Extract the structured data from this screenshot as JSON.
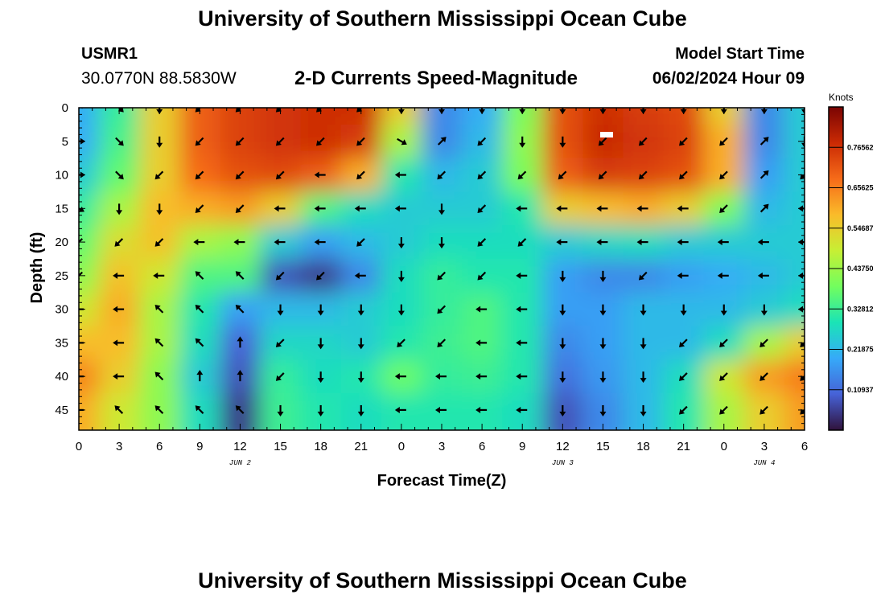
{
  "header": {
    "title": "University of Southern Mississippi Ocean Cube",
    "station_id": "USMR1",
    "station_coords": "30.0770N  88.5830W",
    "chart_title": "2-D Currents Speed-Magnitude",
    "model_label": "Model Start Time",
    "model_time": "06/02/2024 Hour 09"
  },
  "footer": {
    "title": "University of Southern Mississippi Ocean Cube"
  },
  "colorbar": {
    "units": "Knots",
    "tick_labels": [
      "0.10937",
      "0.21875",
      "0.32812",
      "0.43750",
      "0.54687",
      "0.65625",
      "0.76562"
    ],
    "range": [
      0,
      0.875
    ],
    "colors": [
      "#30123b",
      "#4662d7",
      "#36aaf9",
      "#1ae4b6",
      "#72fe5e",
      "#c7ef34",
      "#fabb2a",
      "#f66b19",
      "#ca2a04",
      "#7a0403"
    ]
  },
  "chart_data": {
    "type": "heatmap",
    "title": "2-D Currents Speed-Magnitude",
    "xlabel": "Forecast Time(Z)",
    "ylabel": "Depth (ft)",
    "units": "Knots",
    "xlim": [
      0,
      54
    ],
    "ylim": [
      48,
      0
    ],
    "x_tick_values": [
      0,
      3,
      6,
      9,
      12,
      15,
      18,
      21,
      24,
      27,
      30,
      33,
      36,
      39,
      42,
      45,
      48,
      51,
      54
    ],
    "x_tick_labels": [
      "0",
      "3",
      "6",
      "9",
      "12",
      "15",
      "18",
      "21",
      "0",
      "3",
      "6",
      "9",
      "12",
      "15",
      "18",
      "21",
      "0",
      "3",
      "6"
    ],
    "y_tick_values": [
      0,
      5,
      10,
      15,
      20,
      25,
      30,
      35,
      40,
      45
    ],
    "y_tick_labels": [
      "0",
      "5",
      "10",
      "15",
      "20",
      "25",
      "30",
      "35",
      "40",
      "45"
    ],
    "date_labels": [
      {
        "hour": 12,
        "label": "JUN 2"
      },
      {
        "hour": 36,
        "label": "JUN 3"
      },
      {
        "hour": 51,
        "label": "JUN 4"
      }
    ],
    "vector_hours": [
      0,
      3,
      6,
      9,
      12,
      15,
      18,
      21,
      24,
      27,
      30,
      33,
      36,
      39,
      42,
      45,
      48,
      51,
      54
    ],
    "vector_depths": [
      0,
      5,
      10,
      15,
      20,
      25,
      30,
      35,
      40,
      45
    ],
    "speed": [
      [
        0.2,
        0.32,
        0.55,
        0.7,
        0.74,
        0.76,
        0.77,
        0.77,
        0.55,
        0.15,
        0.2,
        0.4,
        0.72,
        0.77,
        0.75,
        0.73,
        0.55,
        0.15,
        0.25
      ],
      [
        0.2,
        0.34,
        0.55,
        0.7,
        0.74,
        0.76,
        0.77,
        0.75,
        0.45,
        0.15,
        0.22,
        0.42,
        0.72,
        0.78,
        0.76,
        0.74,
        0.6,
        0.15,
        0.25
      ],
      [
        0.25,
        0.37,
        0.55,
        0.68,
        0.72,
        0.73,
        0.7,
        0.6,
        0.3,
        0.22,
        0.25,
        0.4,
        0.7,
        0.75,
        0.74,
        0.72,
        0.6,
        0.18,
        0.25
      ],
      [
        0.32,
        0.45,
        0.58,
        0.6,
        0.62,
        0.55,
        0.35,
        0.28,
        0.25,
        0.25,
        0.25,
        0.3,
        0.55,
        0.58,
        0.6,
        0.55,
        0.4,
        0.22,
        0.25
      ],
      [
        0.37,
        0.52,
        0.57,
        0.45,
        0.42,
        0.25,
        0.18,
        0.22,
        0.25,
        0.28,
        0.28,
        0.28,
        0.25,
        0.27,
        0.28,
        0.25,
        0.25,
        0.25,
        0.25
      ],
      [
        0.42,
        0.57,
        0.5,
        0.35,
        0.35,
        0.08,
        0.05,
        0.15,
        0.28,
        0.32,
        0.3,
        0.3,
        0.18,
        0.15,
        0.15,
        0.18,
        0.2,
        0.22,
        0.25
      ],
      [
        0.5,
        0.6,
        0.45,
        0.3,
        0.18,
        0.22,
        0.22,
        0.25,
        0.28,
        0.32,
        0.35,
        0.3,
        0.18,
        0.18,
        0.22,
        0.22,
        0.22,
        0.25,
        0.28
      ],
      [
        0.58,
        0.58,
        0.45,
        0.28,
        0.1,
        0.27,
        0.27,
        0.25,
        0.3,
        0.33,
        0.35,
        0.3,
        0.15,
        0.18,
        0.22,
        0.22,
        0.28,
        0.45,
        0.55
      ],
      [
        0.65,
        0.55,
        0.42,
        0.25,
        0.08,
        0.32,
        0.28,
        0.3,
        0.38,
        0.32,
        0.33,
        0.3,
        0.12,
        0.17,
        0.22,
        0.28,
        0.5,
        0.62,
        0.66
      ],
      [
        0.6,
        0.5,
        0.42,
        0.28,
        0.05,
        0.33,
        0.3,
        0.28,
        0.3,
        0.3,
        0.3,
        0.28,
        0.08,
        0.15,
        0.22,
        0.3,
        0.45,
        0.55,
        0.62
      ]
    ],
    "direction": [
      [
        225,
        315,
        0,
        45,
        45,
        45,
        45,
        45,
        0,
        0,
        0,
        0,
        0,
        0,
        0,
        0,
        0,
        0,
        0
      ],
      [
        270,
        315,
        0,
        45,
        45,
        45,
        45,
        45,
        300,
        225,
        45,
        0,
        0,
        45,
        45,
        45,
        45,
        225,
        0
      ],
      [
        270,
        315,
        45,
        45,
        45,
        45,
        90,
        45,
        90,
        45,
        45,
        45,
        45,
        45,
        45,
        45,
        45,
        225,
        45
      ],
      [
        300,
        0,
        0,
        45,
        45,
        90,
        90,
        90,
        90,
        0,
        45,
        90,
        90,
        90,
        90,
        90,
        45,
        225,
        90
      ],
      [
        45,
        45,
        45,
        90,
        90,
        90,
        90,
        45,
        0,
        0,
        45,
        45,
        90,
        90,
        90,
        90,
        90,
        90,
        90
      ],
      [
        45,
        90,
        90,
        135,
        135,
        45,
        45,
        90,
        0,
        45,
        45,
        90,
        0,
        0,
        45,
        90,
        90,
        90,
        90
      ],
      [
        90,
        90,
        135,
        135,
        135,
        0,
        0,
        0,
        0,
        45,
        90,
        90,
        0,
        0,
        0,
        0,
        0,
        0,
        90
      ],
      [
        90,
        90,
        135,
        135,
        180,
        45,
        0,
        0,
        45,
        45,
        90,
        90,
        0,
        0,
        0,
        45,
        45,
        45,
        45
      ],
      [
        90,
        90,
        135,
        180,
        180,
        45,
        0,
        0,
        90,
        90,
        90,
        90,
        0,
        0,
        0,
        45,
        45,
        45,
        45
      ],
      [
        90,
        135,
        135,
        135,
        135,
        0,
        0,
        0,
        90,
        90,
        90,
        90,
        0,
        0,
        0,
        45,
        45,
        45,
        45
      ]
    ]
  }
}
